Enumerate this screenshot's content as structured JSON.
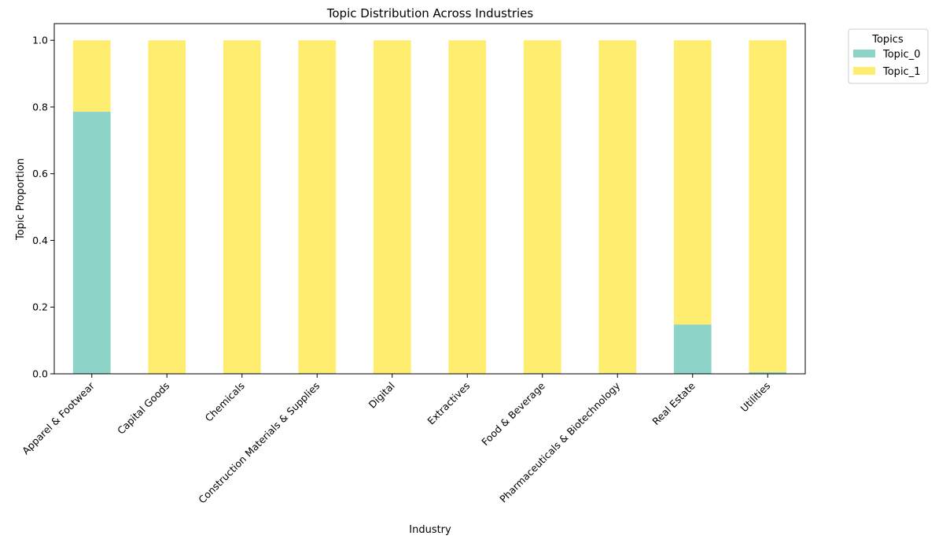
{
  "chart_data": {
    "type": "bar",
    "stacked": true,
    "title": "Topic Distribution Across Industries",
    "xlabel": "Industry",
    "ylabel": "Topic Proportion",
    "ylim": [
      0,
      1.05
    ],
    "yticks": [
      "0.0",
      "0.2",
      "0.4",
      "0.6",
      "0.8",
      "1.0"
    ],
    "categories": [
      "Apparel & Footwear",
      "Capital Goods",
      "Chemicals",
      "Construction Materials & Supplies",
      "Digital",
      "Extractives",
      "Food & Beverage",
      "Pharmaceuticals & Biotechnology",
      "Real Estate",
      "Utilities"
    ],
    "series": [
      {
        "name": "Topic_0",
        "color": "#8dd3c7",
        "values": [
          0.786,
          0.0,
          0.002,
          0.002,
          0.0,
          0.0,
          0.002,
          0.002,
          0.148,
          0.005
        ]
      },
      {
        "name": "Topic_1",
        "color": "#ffed6f",
        "values": [
          0.214,
          1.0,
          0.998,
          0.998,
          1.0,
          1.0,
          0.998,
          0.998,
          0.852,
          0.995
        ]
      }
    ],
    "legend": {
      "title": "Topics",
      "position": "outside-top-right"
    },
    "grid": false
  }
}
